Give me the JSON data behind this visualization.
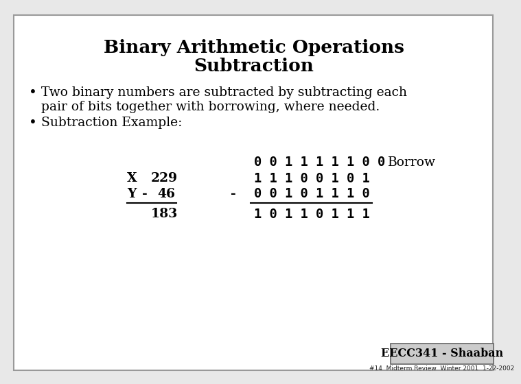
{
  "title_line1": "Binary Arithmetic Operations",
  "title_line2": "Subtraction",
  "bullet1_line1": "Two binary numbers are subtracted by subtracting each",
  "bullet1_line2": "pair of bits together with borrowing, where needed.",
  "bullet2": "Subtraction Example:",
  "borrow_label": "Borrow",
  "borrow_bits": "0 0 1 1 1 1 1 0 0",
  "x_label": "X",
  "x_dec": "229",
  "x_bits": "1 1 1 0 0 1 0 1",
  "y_label": "Y",
  "y_minus": "-",
  "y_dec": "46",
  "minus_sign": "-",
  "y_bits": "0 0 1 0 1 1 1 0",
  "result_dec": "183",
  "result_bits": "1 0 1 1 0 1 1 1",
  "footer_box": "EECC341 - Shaaban",
  "footer_small": "#14  Midterm Review  Winter 2001  1-22-2002",
  "bg_color": "#e8e8e8",
  "slide_bg": "#ffffff",
  "border_color": "#999999",
  "text_color": "#000000",
  "title_fontsize": 19,
  "body_fontsize": 13.5,
  "mono_fontsize": 13.5,
  "footer_fontsize": 11.5,
  "footer_small_fontsize": 6.5
}
